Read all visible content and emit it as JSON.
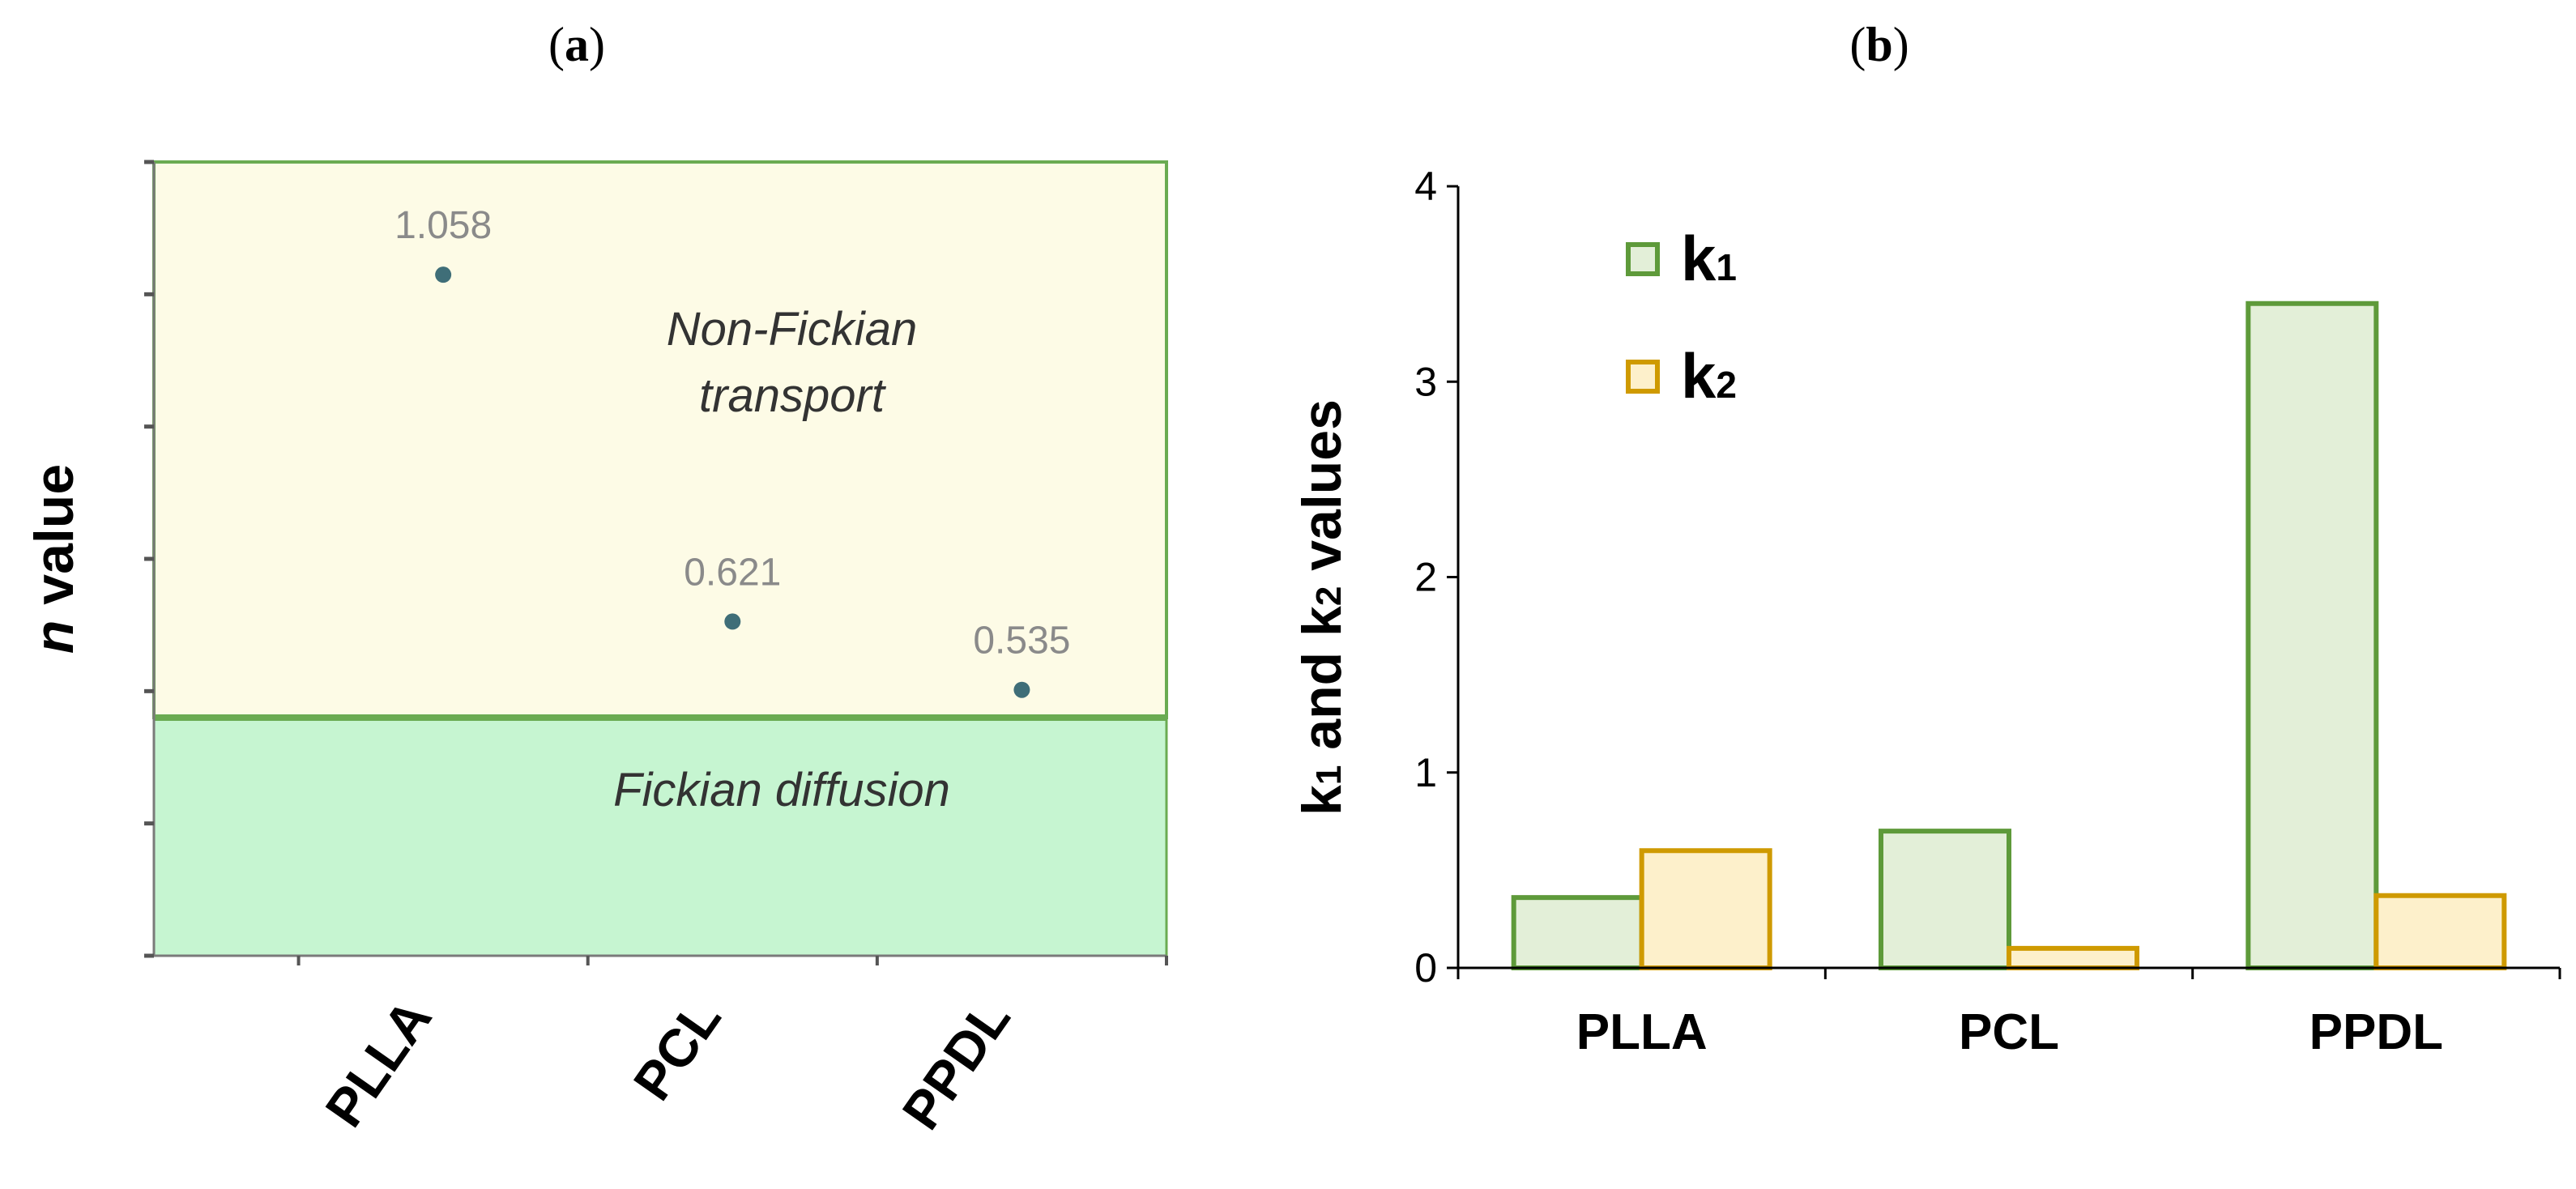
{
  "panel_labels": {
    "a": {
      "open": "(",
      "letter": "a",
      "close": ")"
    },
    "b": {
      "open": "(",
      "letter": "b",
      "close": ")"
    }
  },
  "colors": {
    "region_upper_fill": "#fdfbe6",
    "region_lower_fill": "#c6f5d1",
    "region_border": "#6aab52",
    "point": "#3f6e78",
    "point_label": "#8a8a8a",
    "k1_stroke": "#5e9a3a",
    "k1_fill": "#e3efd8",
    "k2_stroke": "#cf9a00",
    "k2_fill": "#fdf0cb",
    "axis": "#000000"
  },
  "chart_data": [
    {
      "type": "scatter",
      "ylabel": {
        "italic": "n",
        "rest": " value"
      },
      "categories": [
        "PLLA",
        "PCL",
        "PPDL"
      ],
      "y_tick_count": 7,
      "ylim": [
        0.2,
        1.2
      ],
      "points": [
        {
          "x": "PLLA",
          "y": 1.058,
          "label": "1.058"
        },
        {
          "x": "PCL",
          "y": 0.621,
          "label": "0.621"
        },
        {
          "x": "PPDL",
          "y": 0.535,
          "label": "0.535"
        }
      ],
      "regions": [
        {
          "name": "Non-Fickian transport",
          "lines": [
            "Non-Fickian",
            "transport"
          ],
          "from": 0.5,
          "to": 1.2
        },
        {
          "name": "Fickian diffusion",
          "lines": [
            "Fickian diffusion"
          ],
          "from": 0.0,
          "to": 0.5
        }
      ],
      "boundary": 0.5,
      "grid": false
    },
    {
      "type": "bar",
      "categories": [
        "PLLA",
        "PCL",
        "PPDL"
      ],
      "series": [
        {
          "name": "k1",
          "base": "k",
          "sub": "1",
          "values": [
            0.36,
            0.7,
            3.4
          ]
        },
        {
          "name": "k2",
          "base": "k",
          "sub": "2",
          "values": [
            0.6,
            0.1,
            0.37
          ]
        }
      ],
      "ylabel_parts": [
        {
          "t": "k",
          "sub": false
        },
        {
          "t": "1",
          "sub": true
        },
        {
          "t": " and k",
          "sub": false
        },
        {
          "t": "2",
          "sub": true
        },
        {
          "t": " values",
          "sub": false
        }
      ],
      "ylim": [
        0,
        4
      ],
      "yticks": [
        0,
        1,
        2,
        3,
        4
      ],
      "legend_position": "top-left",
      "grid": false
    }
  ]
}
